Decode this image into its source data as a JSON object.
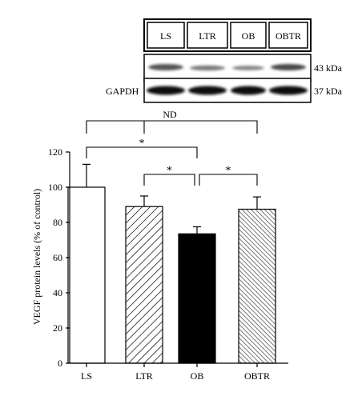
{
  "blot": {
    "lanes": [
      "LS",
      "LTR",
      "OB",
      "OBTR"
    ],
    "row_label_left": "GAPDH",
    "mw_top": "43 kDa",
    "mw_bottom": "37 kDa"
  },
  "chart_data": {
    "type": "bar",
    "categories": [
      "LS",
      "LTR",
      "OB",
      "OBTR"
    ],
    "values": [
      100,
      89,
      73.5,
      87.5
    ],
    "errors": [
      13,
      6,
      4,
      7
    ],
    "fills": [
      "white",
      "diagonal-hatch-dense",
      "black",
      "diagonal-hatch-gray"
    ],
    "ylabel": "VEGF protein levels (% of control)",
    "xlabel": "",
    "ylim": [
      0,
      120
    ],
    "yticks": [
      0,
      20,
      40,
      60,
      80,
      100,
      120
    ],
    "grid": false,
    "annotations": [
      {
        "text": "ND",
        "from": "LS",
        "to": "OBTR",
        "center": "LTR"
      },
      {
        "text": "*",
        "from": "LS",
        "to": "OB"
      },
      {
        "text": "*",
        "from": "LTR",
        "to": "OB"
      },
      {
        "text": "*",
        "from": "OB",
        "to": "OBTR"
      }
    ]
  },
  "colors": {
    "stroke": "#000000",
    "hatch_dense": "#000000",
    "hatch_gray": "#555555"
  }
}
